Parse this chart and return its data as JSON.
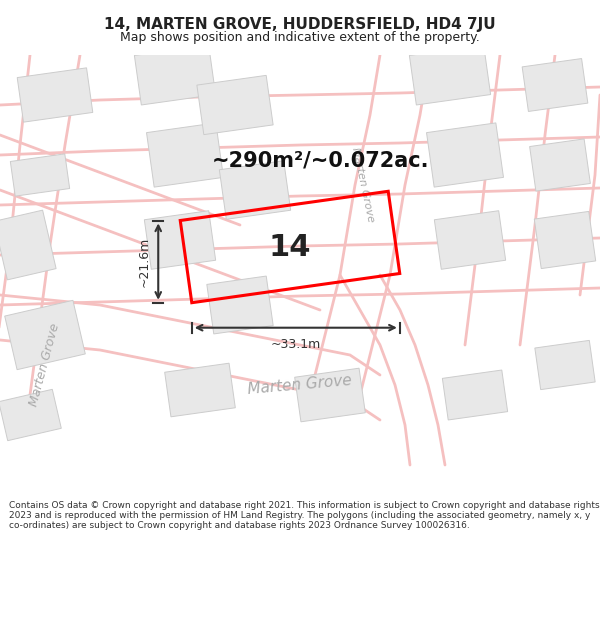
{
  "title": "14, MARTEN GROVE, HUDDERSFIELD, HD4 7JU",
  "subtitle": "Map shows position and indicative extent of the property.",
  "area_text": "~290m²/~0.072ac.",
  "width_label": "~33.1m",
  "height_label": "~21.6m",
  "number_label": "14",
  "footer": "Contains OS data © Crown copyright and database right 2021. This information is subject to Crown copyright and database rights 2023 and is reproduced with the permission of HM Land Registry. The polygons (including the associated geometry, namely x, y co-ordinates) are subject to Crown copyright and database rights 2023 Ordnance Survey 100026316.",
  "bg_color": "#ffffff",
  "map_bg": "#ffffff",
  "road_color": "#f5c0c0",
  "building_color": "#e8e8e8",
  "building_outline": "#cccccc",
  "property_color": "#ff0000",
  "dim_color": "#333333",
  "street_label_color": "#aaaaaa",
  "title_color": "#222222",
  "footer_color": "#333333",
  "title_fontsize": 11,
  "subtitle_fontsize": 9,
  "area_fontsize": 15,
  "number_fontsize": 22,
  "dim_fontsize": 9,
  "footer_fontsize": 6.5
}
